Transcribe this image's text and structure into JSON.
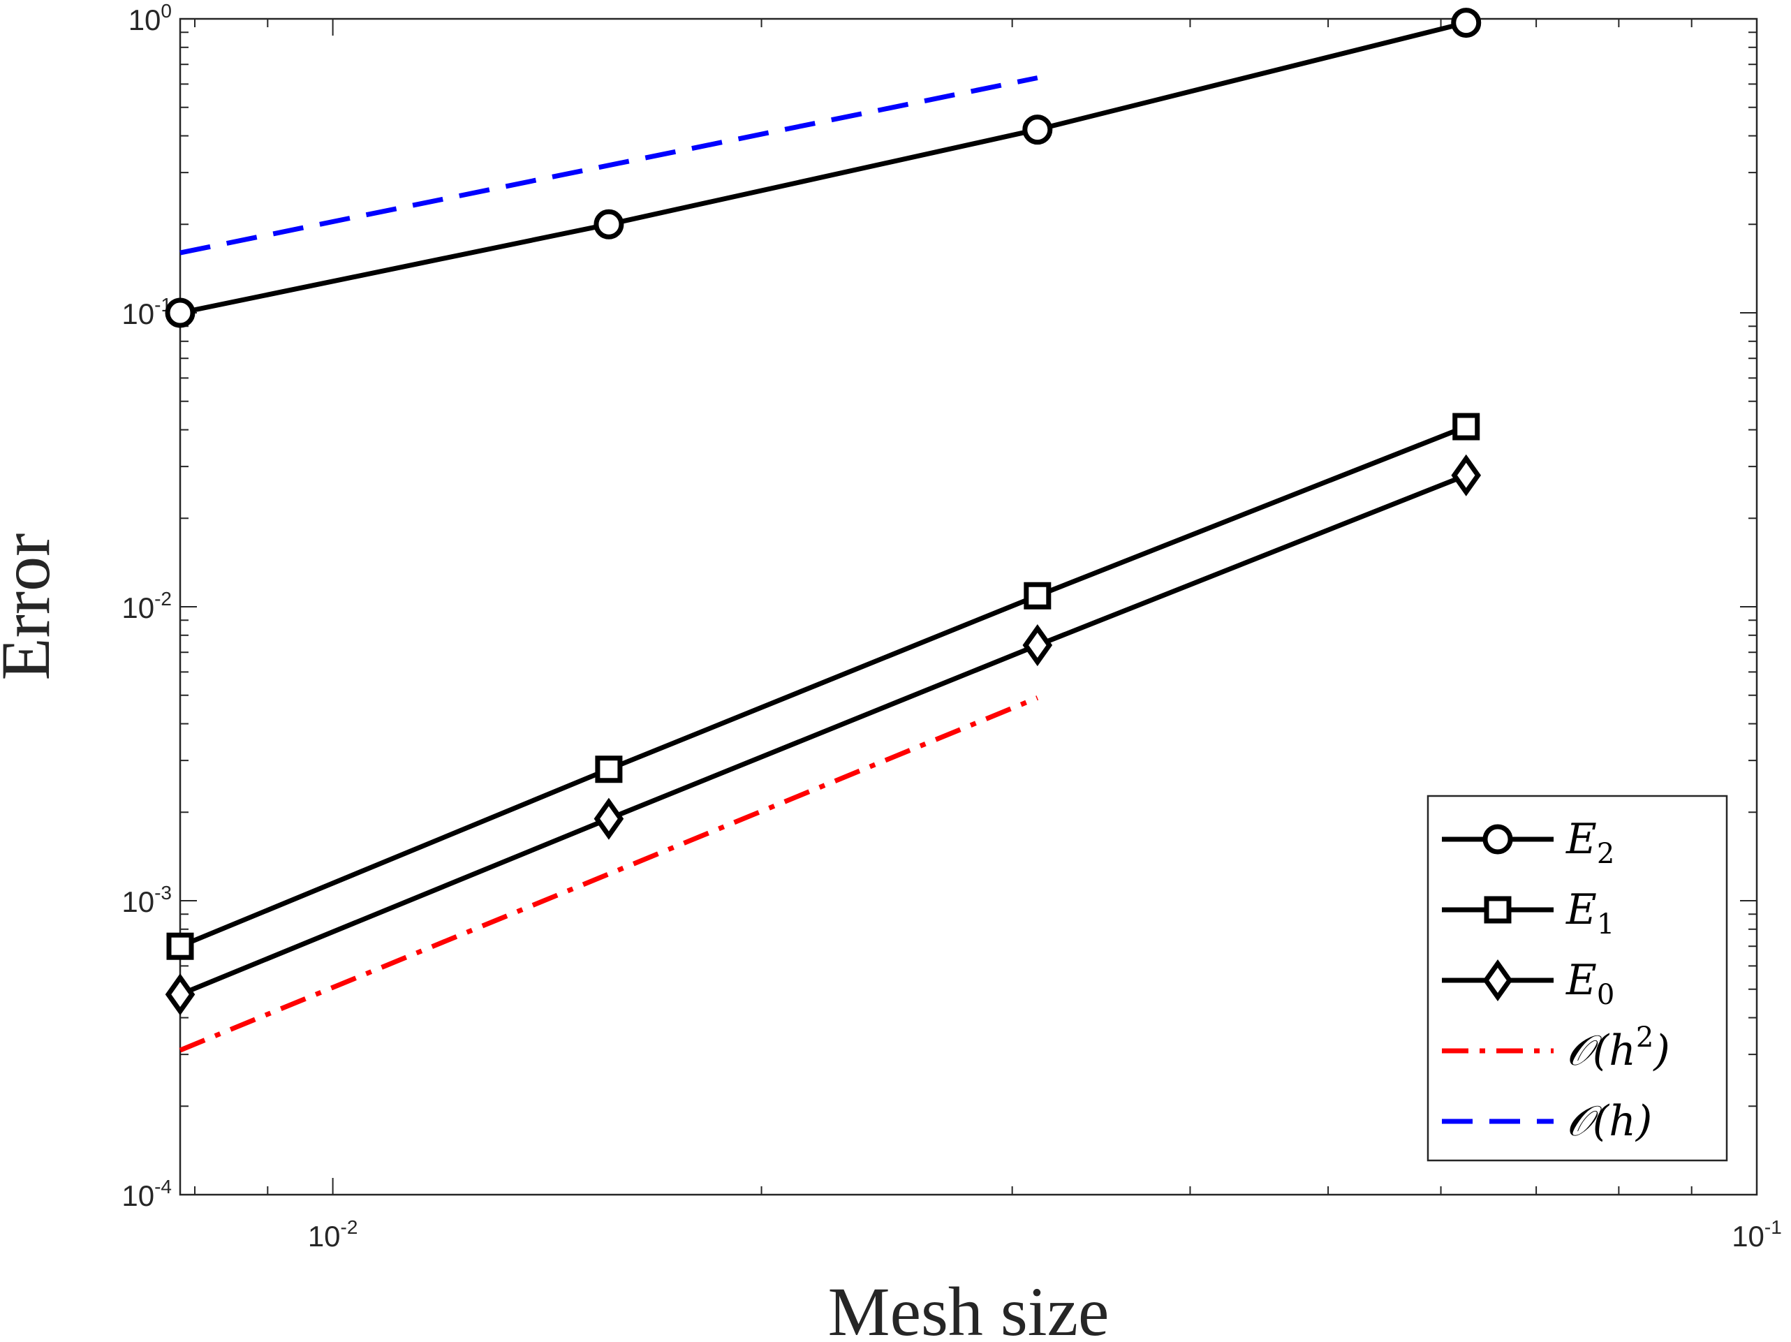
{
  "chart_data": {
    "type": "line",
    "xscale": "log",
    "yscale": "log",
    "xlabel": "Mesh size",
    "ylabel": "Error",
    "xlim": [
      0.0078125,
      0.1
    ],
    "ylim": [
      0.0001,
      1
    ],
    "grid": false,
    "legend_position": "bottom-right",
    "x": [
      0.0078125,
      0.015625,
      0.03125,
      0.0625
    ],
    "xticks": [
      {
        "value": 0.01,
        "base": "10",
        "exp": "-2"
      },
      {
        "value": 0.1,
        "base": "10",
        "exp": "-1"
      }
    ],
    "yticks": [
      {
        "value": 1,
        "base": "10",
        "exp": "0"
      },
      {
        "value": 0.1,
        "base": "10",
        "exp": "-1"
      },
      {
        "value": 0.01,
        "base": "10",
        "exp": "-2"
      },
      {
        "value": 0.001,
        "base": "10",
        "exp": "-3"
      },
      {
        "value": 0.0001,
        "base": "10",
        "exp": "-4"
      }
    ],
    "series": [
      {
        "name": "E2",
        "label_main": "E",
        "label_sub": "2",
        "marker": "circle",
        "color": "#000000",
        "dash": "solid",
        "x": [
          0.0078125,
          0.015625,
          0.03125,
          0.0625
        ],
        "values": [
          0.1,
          0.2,
          0.42,
          0.97
        ]
      },
      {
        "name": "E1",
        "label_main": "E",
        "label_sub": "1",
        "marker": "square",
        "color": "#000000",
        "dash": "solid",
        "x": [
          0.0078125,
          0.015625,
          0.03125,
          0.0625
        ],
        "values": [
          0.0007,
          0.0028,
          0.0109,
          0.041
        ]
      },
      {
        "name": "E0",
        "label_main": "E",
        "label_sub": "0",
        "marker": "diamond",
        "color": "#000000",
        "dash": "solid",
        "x": [
          0.0078125,
          0.015625,
          0.03125,
          0.0625
        ],
        "values": [
          0.00048,
          0.0019,
          0.0074,
          0.028
        ]
      },
      {
        "name": "O(h^2)",
        "label_main": "𝒪(h",
        "label_sup": "2",
        "label_tail": ")",
        "marker": "none",
        "color": "#ff0000",
        "dash": "dashdot",
        "x": [
          0.0078125,
          0.03125
        ],
        "values": [
          0.00031,
          0.0049
        ]
      },
      {
        "name": "O(h)",
        "label_main": "𝒪(h)",
        "marker": "none",
        "color": "#0000ff",
        "dash": "dashed",
        "x": [
          0.0078125,
          0.03125
        ],
        "values": [
          0.16,
          0.63
        ]
      }
    ]
  }
}
